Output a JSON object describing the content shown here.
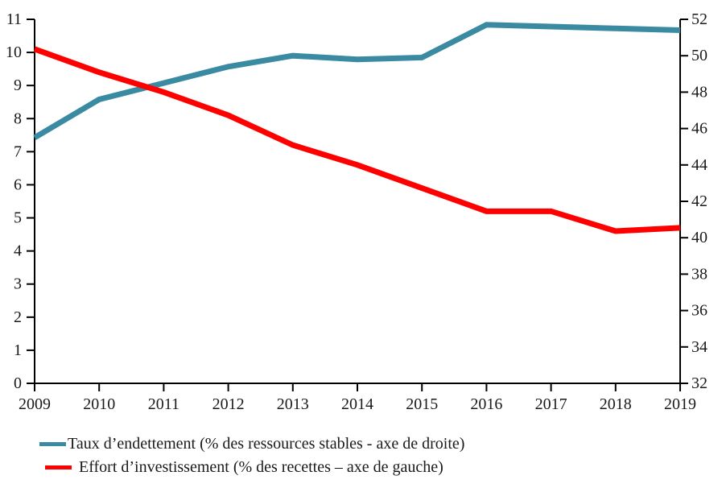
{
  "chart_data": {
    "type": "line",
    "title": "",
    "x": [
      2009,
      2010,
      2011,
      2012,
      2013,
      2014,
      2015,
      2016,
      2017,
      2018,
      2019
    ],
    "x_tick_labels": [
      "2009",
      "2010",
      "2011",
      "2012",
      "2013",
      "2014",
      "2015",
      "2016",
      "2017",
      "2018",
      "2019"
    ],
    "left_axis": {
      "min": 0,
      "max": 11,
      "tick_step": 1,
      "tick_labels": [
        "0",
        "1",
        "2",
        "3",
        "4",
        "5",
        "6",
        "7",
        "8",
        "9",
        "10",
        "11"
      ]
    },
    "right_axis": {
      "min": 32,
      "max": 52,
      "tick_step": 2,
      "tick_labels": [
        "32",
        "34",
        "36",
        "38",
        "40",
        "42",
        "44",
        "46",
        "48",
        "50",
        "52"
      ]
    },
    "grid": false,
    "legend_position": "bottom-left",
    "axis_color": "#000000",
    "series": [
      {
        "name": "Taux d’endettement (% des ressources stables - axe de droite)",
        "axis": "right",
        "color": "#3A8BA2",
        "values": [
          45.5,
          47.6,
          48.5,
          49.4,
          50.0,
          49.8,
          49.9,
          51.7,
          51.6,
          51.5,
          51.4
        ]
      },
      {
        "name": "Effort d’investissement (% des recettes – axe de gauche)",
        "axis": "left",
        "color": "#FF0000",
        "values": [
          10.1,
          9.4,
          8.8,
          8.1,
          7.2,
          6.6,
          5.9,
          5.2,
          5.2,
          4.6,
          4.7
        ]
      }
    ]
  }
}
